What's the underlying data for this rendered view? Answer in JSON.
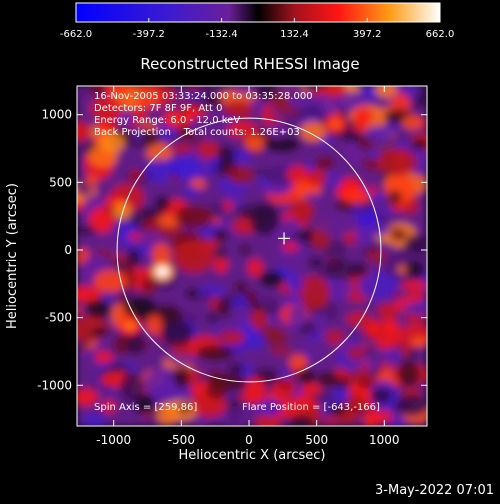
{
  "colorbar": {
    "ticks": [
      "-662.0",
      "-397.2",
      "-132.4",
      "132.4",
      "397.2",
      "662.0"
    ],
    "range": [
      -662.0,
      662.0
    ]
  },
  "chart_data": {
    "type": "heatmap",
    "title": "Reconstructed RHESSI Image",
    "xlabel": "Heliocentric X (arcsec)",
    "ylabel": "Heliocentric Y (arcsec)",
    "xlim": [
      -1300,
      1300
    ],
    "ylim": [
      -1300,
      1300
    ],
    "x_ticks": [
      -1000,
      -500,
      0,
      500,
      1000
    ],
    "y_ticks": [
      -1000,
      -500,
      0,
      500,
      1000
    ],
    "x_tick_labels": [
      "-1000",
      "-500",
      "0",
      "500",
      "1000"
    ],
    "y_tick_labels": [
      "-1000",
      "-500",
      "0",
      "500",
      "1000"
    ],
    "value_range": [
      -662.0,
      662.0
    ],
    "solar_limb_radius_arcsec": 975,
    "flare_marker": [
      259,
      86
    ],
    "bright_sources": [
      {
        "x": -640,
        "y": -160,
        "value": 662
      },
      {
        "x": -880,
        "y": -560,
        "value": 420
      },
      {
        "x": 640,
        "y": 930,
        "value": 380
      },
      {
        "x": -560,
        "y": 970,
        "value": 330
      },
      {
        "x": 920,
        "y": -580,
        "value": 280
      }
    ],
    "annotations": [
      "16-Nov-2005 03:33:24.000 to 03:35:28.000",
      "Detectors: 7F 8F 9F, Att 0",
      "Energy Range: 6.0 - 12.0 keV",
      "Back Projection    Total counts: 1.26E+03",
      "Spin Axis = [259,86]",
      "Flare Position = [-643,-166]"
    ]
  },
  "footer": {
    "date": "3-May-2022 07:01"
  }
}
